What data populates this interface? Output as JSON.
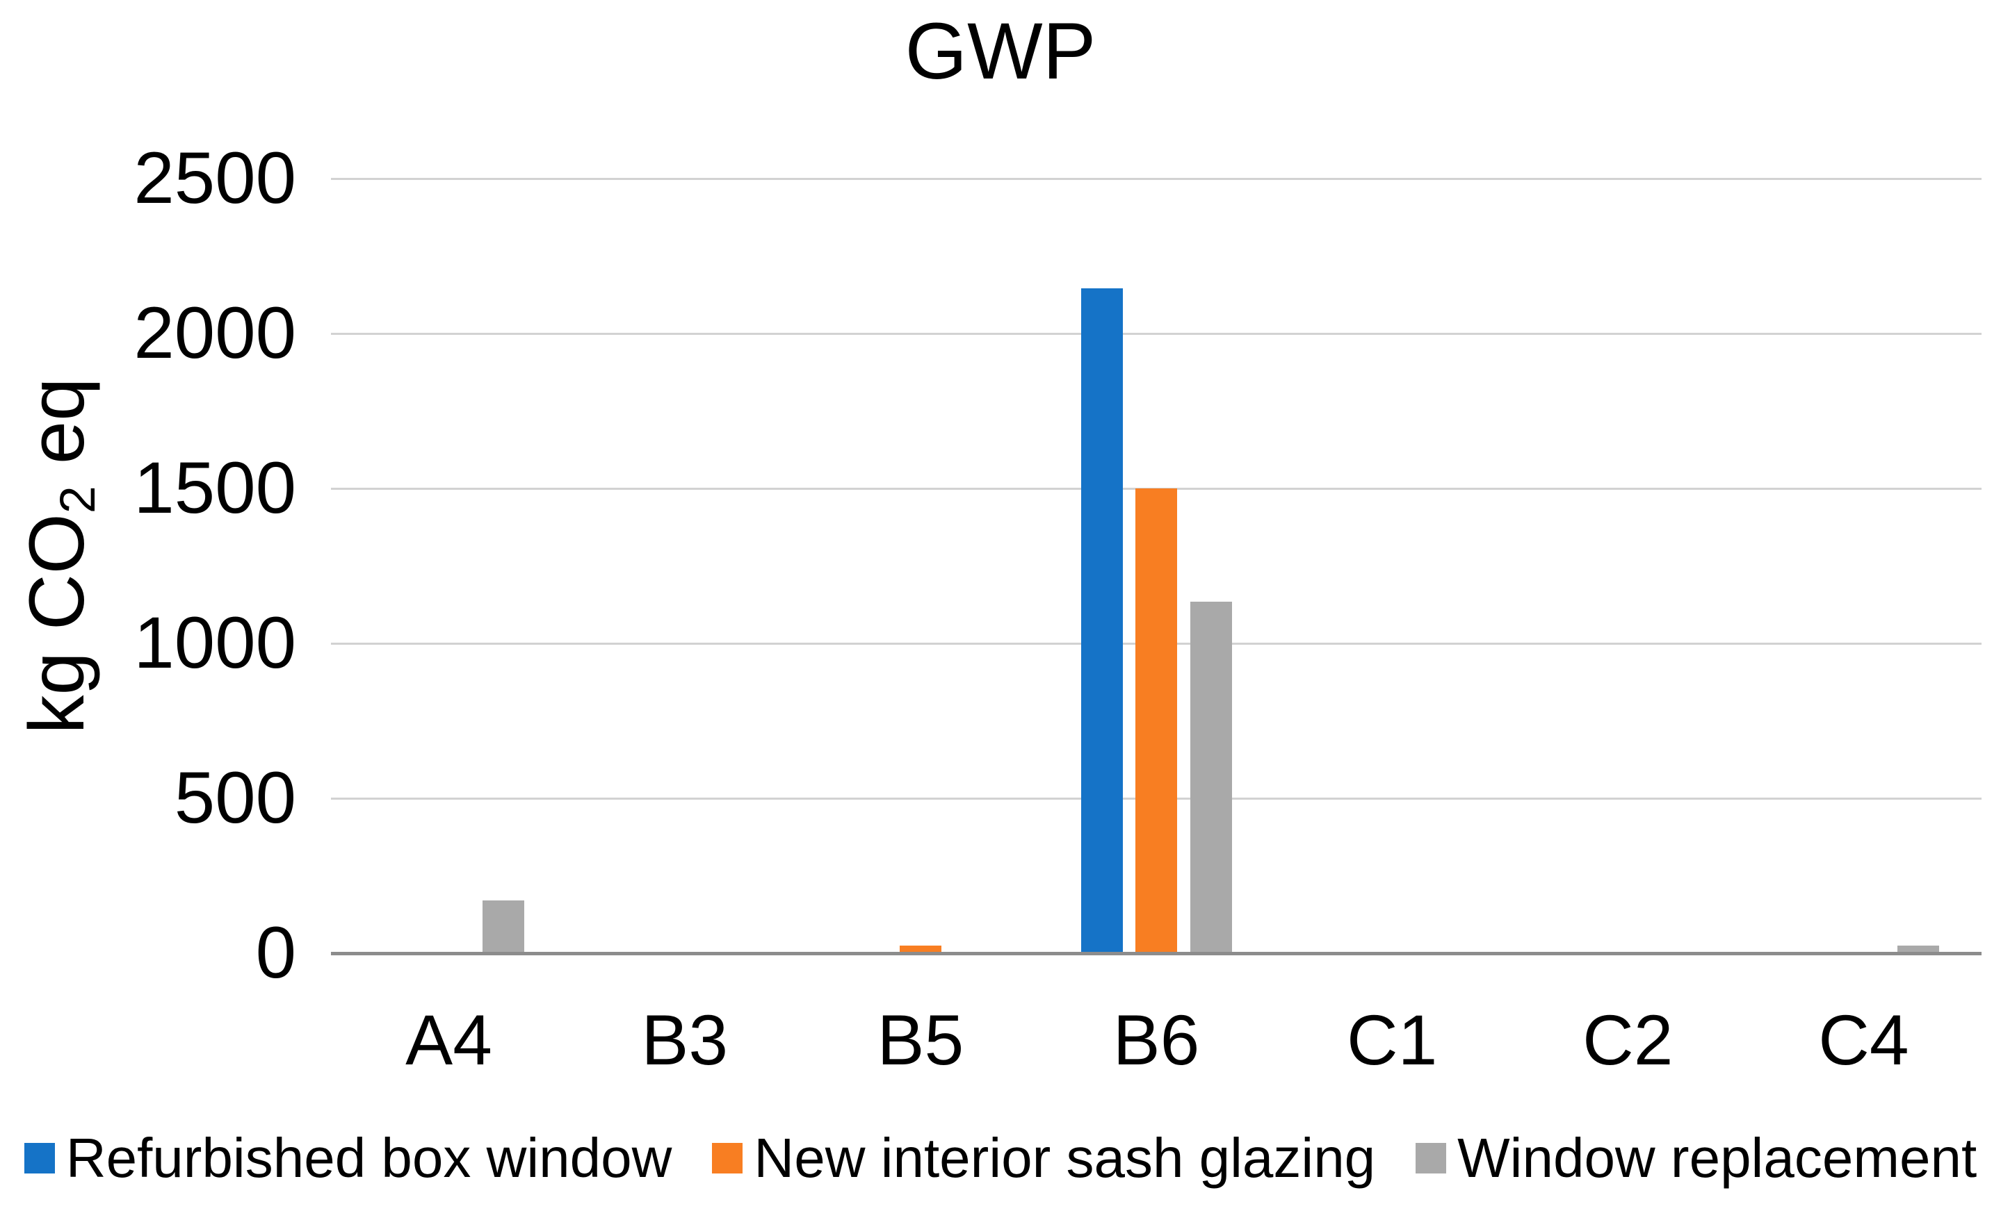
{
  "chart": {
    "title": "GWP",
    "y_title": {
      "prefix": "kg CO",
      "sub": "2",
      "suffix": " eq"
    }
  },
  "chart_data": {
    "type": "bar",
    "title": "GWP",
    "xlabel": "",
    "ylabel": "kg CO2 eq",
    "categories": [
      "A4",
      "B3",
      "B5",
      "B6",
      "C1",
      "C2",
      "C4"
    ],
    "series": [
      {
        "name": "Refurbished box window",
        "color": "#1573C7",
        "values": [
          0,
          0,
          0,
          2145,
          0,
          0,
          0
        ]
      },
      {
        "name": "New interior sash glazing",
        "color": "#F87E22",
        "values": [
          0,
          0,
          25,
          1500,
          0,
          0,
          0
        ]
      },
      {
        "name": "Window replacement",
        "color": "#A9A9A9",
        "values": [
          170,
          0,
          0,
          1135,
          0,
          0,
          25
        ]
      }
    ],
    "ylim": [
      0,
      2500
    ],
    "ytick_step": 500,
    "ytick_labels": [
      "0",
      "500",
      "1000",
      "1500",
      "2000",
      "2500"
    ],
    "grid": true,
    "legend_position": "bottom"
  },
  "style": {
    "gridline_color": "#D2D2D2",
    "axis_color": "#8C8C8C",
    "text_color": "#000000",
    "background": "#FFFFFF"
  }
}
